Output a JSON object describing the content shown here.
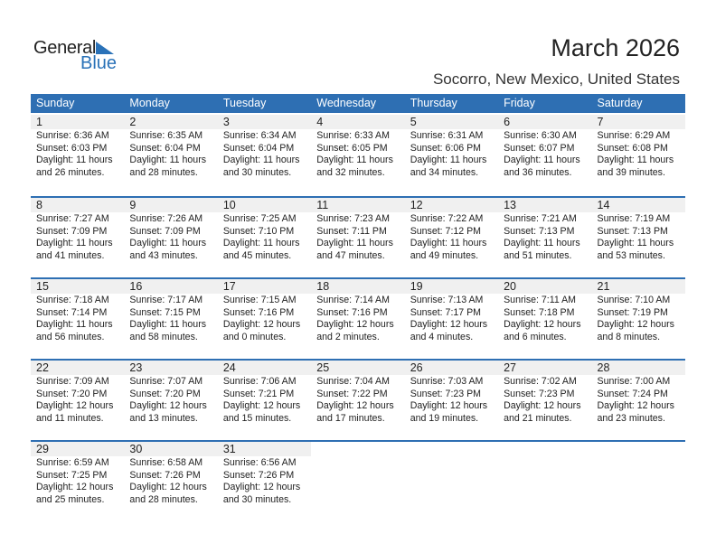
{
  "logo": {
    "line1": "General",
    "line2": "Blue"
  },
  "title": "March 2026",
  "location": "Socorro, New Mexico, United States",
  "weekdays": [
    "Sunday",
    "Monday",
    "Tuesday",
    "Wednesday",
    "Thursday",
    "Friday",
    "Saturday"
  ],
  "weeks": [
    [
      {
        "day": "1",
        "sunrise": "Sunrise: 6:36 AM",
        "sunset": "Sunset: 6:03 PM",
        "daylight1": "Daylight: 11 hours",
        "daylight2": "and 26 minutes."
      },
      {
        "day": "2",
        "sunrise": "Sunrise: 6:35 AM",
        "sunset": "Sunset: 6:04 PM",
        "daylight1": "Daylight: 11 hours",
        "daylight2": "and 28 minutes."
      },
      {
        "day": "3",
        "sunrise": "Sunrise: 6:34 AM",
        "sunset": "Sunset: 6:04 PM",
        "daylight1": "Daylight: 11 hours",
        "daylight2": "and 30 minutes."
      },
      {
        "day": "4",
        "sunrise": "Sunrise: 6:33 AM",
        "sunset": "Sunset: 6:05 PM",
        "daylight1": "Daylight: 11 hours",
        "daylight2": "and 32 minutes."
      },
      {
        "day": "5",
        "sunrise": "Sunrise: 6:31 AM",
        "sunset": "Sunset: 6:06 PM",
        "daylight1": "Daylight: 11 hours",
        "daylight2": "and 34 minutes."
      },
      {
        "day": "6",
        "sunrise": "Sunrise: 6:30 AM",
        "sunset": "Sunset: 6:07 PM",
        "daylight1": "Daylight: 11 hours",
        "daylight2": "and 36 minutes."
      },
      {
        "day": "7",
        "sunrise": "Sunrise: 6:29 AM",
        "sunset": "Sunset: 6:08 PM",
        "daylight1": "Daylight: 11 hours",
        "daylight2": "and 39 minutes."
      }
    ],
    [
      {
        "day": "8",
        "sunrise": "Sunrise: 7:27 AM",
        "sunset": "Sunset: 7:09 PM",
        "daylight1": "Daylight: 11 hours",
        "daylight2": "and 41 minutes."
      },
      {
        "day": "9",
        "sunrise": "Sunrise: 7:26 AM",
        "sunset": "Sunset: 7:09 PM",
        "daylight1": "Daylight: 11 hours",
        "daylight2": "and 43 minutes."
      },
      {
        "day": "10",
        "sunrise": "Sunrise: 7:25 AM",
        "sunset": "Sunset: 7:10 PM",
        "daylight1": "Daylight: 11 hours",
        "daylight2": "and 45 minutes."
      },
      {
        "day": "11",
        "sunrise": "Sunrise: 7:23 AM",
        "sunset": "Sunset: 7:11 PM",
        "daylight1": "Daylight: 11 hours",
        "daylight2": "and 47 minutes."
      },
      {
        "day": "12",
        "sunrise": "Sunrise: 7:22 AM",
        "sunset": "Sunset: 7:12 PM",
        "daylight1": "Daylight: 11 hours",
        "daylight2": "and 49 minutes."
      },
      {
        "day": "13",
        "sunrise": "Sunrise: 7:21 AM",
        "sunset": "Sunset: 7:13 PM",
        "daylight1": "Daylight: 11 hours",
        "daylight2": "and 51 minutes."
      },
      {
        "day": "14",
        "sunrise": "Sunrise: 7:19 AM",
        "sunset": "Sunset: 7:13 PM",
        "daylight1": "Daylight: 11 hours",
        "daylight2": "and 53 minutes."
      }
    ],
    [
      {
        "day": "15",
        "sunrise": "Sunrise: 7:18 AM",
        "sunset": "Sunset: 7:14 PM",
        "daylight1": "Daylight: 11 hours",
        "daylight2": "and 56 minutes."
      },
      {
        "day": "16",
        "sunrise": "Sunrise: 7:17 AM",
        "sunset": "Sunset: 7:15 PM",
        "daylight1": "Daylight: 11 hours",
        "daylight2": "and 58 minutes."
      },
      {
        "day": "17",
        "sunrise": "Sunrise: 7:15 AM",
        "sunset": "Sunset: 7:16 PM",
        "daylight1": "Daylight: 12 hours",
        "daylight2": "and 0 minutes."
      },
      {
        "day": "18",
        "sunrise": "Sunrise: 7:14 AM",
        "sunset": "Sunset: 7:16 PM",
        "daylight1": "Daylight: 12 hours",
        "daylight2": "and 2 minutes."
      },
      {
        "day": "19",
        "sunrise": "Sunrise: 7:13 AM",
        "sunset": "Sunset: 7:17 PM",
        "daylight1": "Daylight: 12 hours",
        "daylight2": "and 4 minutes."
      },
      {
        "day": "20",
        "sunrise": "Sunrise: 7:11 AM",
        "sunset": "Sunset: 7:18 PM",
        "daylight1": "Daylight: 12 hours",
        "daylight2": "and 6 minutes."
      },
      {
        "day": "21",
        "sunrise": "Sunrise: 7:10 AM",
        "sunset": "Sunset: 7:19 PM",
        "daylight1": "Daylight: 12 hours",
        "daylight2": "and 8 minutes."
      }
    ],
    [
      {
        "day": "22",
        "sunrise": "Sunrise: 7:09 AM",
        "sunset": "Sunset: 7:20 PM",
        "daylight1": "Daylight: 12 hours",
        "daylight2": "and 11 minutes."
      },
      {
        "day": "23",
        "sunrise": "Sunrise: 7:07 AM",
        "sunset": "Sunset: 7:20 PM",
        "daylight1": "Daylight: 12 hours",
        "daylight2": "and 13 minutes."
      },
      {
        "day": "24",
        "sunrise": "Sunrise: 7:06 AM",
        "sunset": "Sunset: 7:21 PM",
        "daylight1": "Daylight: 12 hours",
        "daylight2": "and 15 minutes."
      },
      {
        "day": "25",
        "sunrise": "Sunrise: 7:04 AM",
        "sunset": "Sunset: 7:22 PM",
        "daylight1": "Daylight: 12 hours",
        "daylight2": "and 17 minutes."
      },
      {
        "day": "26",
        "sunrise": "Sunrise: 7:03 AM",
        "sunset": "Sunset: 7:23 PM",
        "daylight1": "Daylight: 12 hours",
        "daylight2": "and 19 minutes."
      },
      {
        "day": "27",
        "sunrise": "Sunrise: 7:02 AM",
        "sunset": "Sunset: 7:23 PM",
        "daylight1": "Daylight: 12 hours",
        "daylight2": "and 21 minutes."
      },
      {
        "day": "28",
        "sunrise": "Sunrise: 7:00 AM",
        "sunset": "Sunset: 7:24 PM",
        "daylight1": "Daylight: 12 hours",
        "daylight2": "and 23 minutes."
      }
    ],
    [
      {
        "day": "29",
        "sunrise": "Sunrise: 6:59 AM",
        "sunset": "Sunset: 7:25 PM",
        "daylight1": "Daylight: 12 hours",
        "daylight2": "and 25 minutes."
      },
      {
        "day": "30",
        "sunrise": "Sunrise: 6:58 AM",
        "sunset": "Sunset: 7:26 PM",
        "daylight1": "Daylight: 12 hours",
        "daylight2": "and 28 minutes."
      },
      {
        "day": "31",
        "sunrise": "Sunrise: 6:56 AM",
        "sunset": "Sunset: 7:26 PM",
        "daylight1": "Daylight: 12 hours",
        "daylight2": "and 30 minutes."
      }
    ]
  ]
}
